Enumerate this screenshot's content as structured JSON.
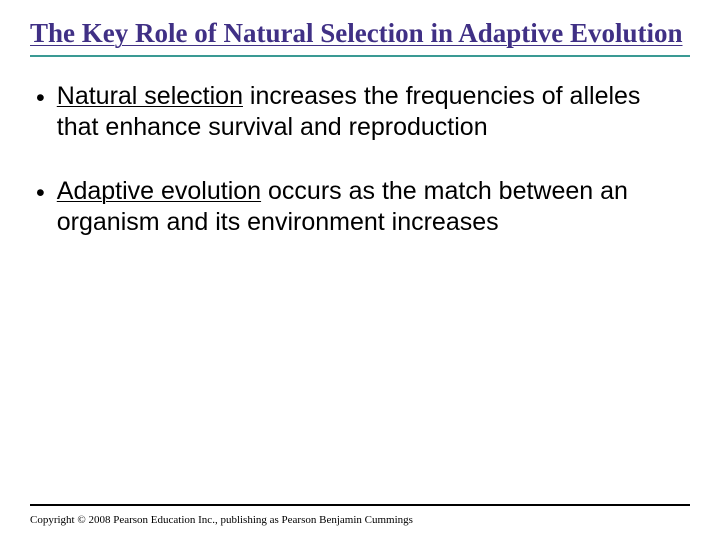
{
  "title": "The Key Role of Natural Selection in Adaptive Evolution",
  "title_color": "#403085",
  "title_fontsize": 27,
  "title_rule_color": "#3a9a94",
  "bullets": [
    {
      "underlined": "Natural selection",
      "rest": " increases the frequencies of alleles that enhance survival and reproduction"
    },
    {
      "underlined": "Adaptive evolution",
      "rest": " occurs as the match between an organism and its environment increases"
    }
  ],
  "bullet_fontsize": 25,
  "bullet_color": "#000000",
  "footer_rule_color": "#000000",
  "copyright": "Copyright © 2008 Pearson Education Inc., publishing as Pearson Benjamin Cummings",
  "copyright_fontsize": 11,
  "background_color": "#ffffff"
}
